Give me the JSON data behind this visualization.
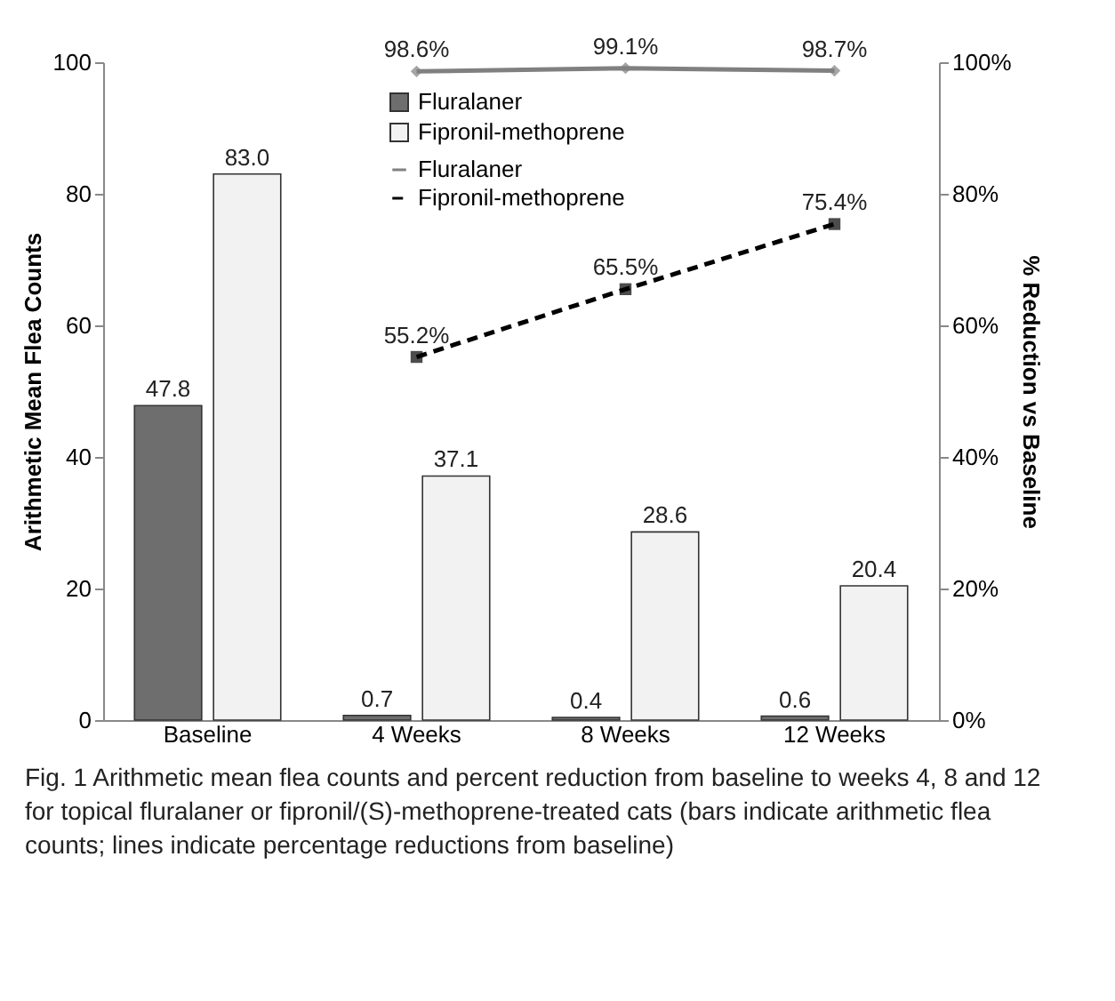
{
  "chart_data": {
    "type": "bar",
    "categories": [
      "Baseline",
      "4 Weeks",
      "8 Weeks",
      "12 Weeks"
    ],
    "ylabel": "Arithmetic Mean Flea Counts",
    "y2label": "% Reduction vs Baseline",
    "ylim": [
      0,
      100
    ],
    "yticks": [
      0,
      20,
      40,
      60,
      80,
      100
    ],
    "y2lim": [
      0,
      100
    ],
    "y2ticks": [
      {
        "value": 0,
        "label": "0%"
      },
      {
        "value": 20,
        "label": "20%"
      },
      {
        "value": 40,
        "label": "40%"
      },
      {
        "value": 60,
        "label": "60%"
      },
      {
        "value": 80,
        "label": "80%"
      },
      {
        "value": 100,
        "label": "100%"
      }
    ],
    "grid": false,
    "legend": "top",
    "series": [
      {
        "name": "Fluralaner",
        "type": "bar",
        "color": "#6e6e6e",
        "values": [
          47.8,
          0.7,
          0.4,
          0.6
        ],
        "value_labels": [
          "47.8",
          "0.7",
          "0.4",
          "0.6"
        ]
      },
      {
        "name": "Fipronil-methoprene",
        "type": "bar",
        "color": "#f2f2f2",
        "values": [
          83.0,
          37.1,
          28.6,
          20.4
        ],
        "value_labels": [
          "83.0",
          "37.1",
          "28.6",
          "20.4"
        ]
      },
      {
        "name": "Fluralaner",
        "type": "line",
        "axis": "y2",
        "color": "#808080",
        "marker": "diamond",
        "line_style": "solid",
        "values": [
          null,
          98.6,
          99.1,
          98.7
        ],
        "value_labels": [
          null,
          "98.6%",
          "99.1%",
          "98.7%"
        ]
      },
      {
        "name": "Fipronil-methoprene",
        "type": "line",
        "axis": "y2",
        "color": "#000000",
        "marker": "square",
        "line_style": "dashed",
        "values": [
          null,
          55.2,
          65.5,
          75.4
        ],
        "value_labels": [
          null,
          "55.2%",
          "65.5%",
          "75.4%"
        ]
      }
    ],
    "annotations": [
      "Fig. 1 Arithmetic mean flea counts and percent reduction from baseline to weeks 4, 8 and 12 for topical fluralaner or fipronil/(S)-methoprene-treated cats (bars indicate arithmetic flea counts; lines indicate percentage reductions from baseline)"
    ]
  }
}
